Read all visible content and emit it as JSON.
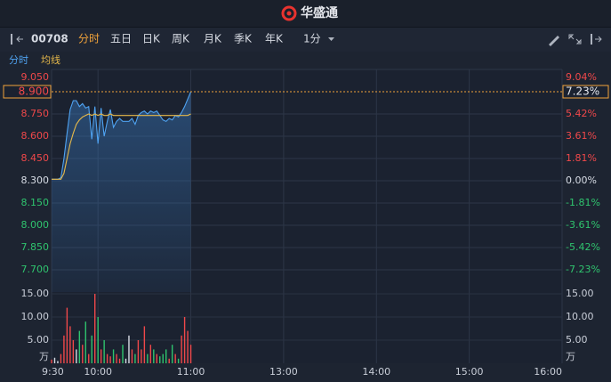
{
  "header": {
    "title": "华盛通"
  },
  "toolbar": {
    "code": "00708",
    "tabs": [
      "分时",
      "五日",
      "日K",
      "周K",
      "月K",
      "季K",
      "年K"
    ],
    "active_tab": 0,
    "period": "1分"
  },
  "chart_data": {
    "type": "line",
    "x": [
      0,
      2,
      4,
      6,
      8,
      10,
      12,
      14,
      16,
      18,
      20,
      22,
      24,
      26,
      28,
      30,
      32,
      34,
      36,
      38,
      40,
      42,
      44,
      46,
      48,
      50,
      52,
      54,
      56,
      58,
      60,
      62,
      64,
      66,
      68,
      70,
      72,
      74,
      76,
      78,
      80,
      82,
      84,
      86,
      88,
      90
    ],
    "xlim": [
      0,
      330
    ],
    "xticks": [
      {
        "value": 0,
        "label": "9:30"
      },
      {
        "value": 30,
        "label": "10:00"
      },
      {
        "value": 90,
        "label": "11:00"
      },
      {
        "value": 150,
        "label": "13:00"
      },
      {
        "value": 210,
        "label": "14:00"
      },
      {
        "value": 270,
        "label": "15:00"
      },
      {
        "value": 330,
        "label": "16:00"
      }
    ],
    "series": [
      {
        "name": "分时",
        "color": "#4fa3f2",
        "values": [
          8.31,
          8.31,
          8.31,
          8.32,
          8.45,
          8.62,
          8.78,
          8.84,
          8.84,
          8.8,
          8.82,
          8.79,
          8.8,
          8.58,
          8.8,
          8.55,
          8.79,
          8.6,
          8.7,
          8.78,
          8.66,
          8.7,
          8.72,
          8.7,
          8.7,
          8.7,
          8.72,
          8.68,
          8.74,
          8.76,
          8.77,
          8.75,
          8.77,
          8.76,
          8.77,
          8.74,
          8.71,
          8.7,
          8.72,
          8.71,
          8.74,
          8.73,
          8.76,
          8.8,
          8.85,
          8.9
        ]
      },
      {
        "name": "均线",
        "color": "#e5b84a",
        "values": [
          8.31,
          8.31,
          8.31,
          8.31,
          8.35,
          8.45,
          8.55,
          8.62,
          8.68,
          8.71,
          8.73,
          8.74,
          8.75,
          8.74,
          8.75,
          8.74,
          8.75,
          8.74,
          8.74,
          8.75,
          8.74,
          8.74,
          8.74,
          8.74,
          8.74,
          8.74,
          8.74,
          8.74,
          8.74,
          8.74,
          8.74,
          8.74,
          8.74,
          8.74,
          8.74,
          8.74,
          8.74,
          8.74,
          8.74,
          8.74,
          8.74,
          8.74,
          8.74,
          8.74,
          8.74,
          8.75
        ]
      }
    ],
    "ylim": [
      7.55,
      9.05
    ],
    "yticks": [
      {
        "value": 9.05,
        "label": "9.050"
      },
      {
        "value": 8.75,
        "label": "8.750"
      },
      {
        "value": 8.6,
        "label": "8.600"
      },
      {
        "value": 8.45,
        "label": "8.450"
      },
      {
        "value": 8.3,
        "label": "8.300"
      },
      {
        "value": 8.15,
        "label": "8.150"
      },
      {
        "value": 8.0,
        "label": "8.000"
      },
      {
        "value": 7.85,
        "label": "7.850"
      },
      {
        "value": 7.7,
        "label": "7.700"
      }
    ],
    "y2lim": [
      -9.036,
      9.036
    ],
    "y2ticks": [
      {
        "value": 9.04,
        "label": "9.04%"
      },
      {
        "value": 5.42,
        "label": "5.42%"
      },
      {
        "value": 3.61,
        "label": "3.61%"
      },
      {
        "value": 1.81,
        "label": "1.81%"
      },
      {
        "value": 0,
        "label": "0.00%"
      },
      {
        "value": -1.81,
        "label": "-1.81%"
      },
      {
        "value": -3.61,
        "label": "-3.61%"
      },
      {
        "value": -5.42,
        "label": "-5.42%"
      },
      {
        "value": -7.23,
        "label": "-7.23%"
      }
    ],
    "last_price": {
      "value": 8.9,
      "label": "8.900"
    },
    "last_change": {
      "value": 7.23,
      "label": "7.23%"
    },
    "up_color": "#f0484a",
    "down_color": "#2fc46e",
    "flat_color": "#d8dde6",
    "grid": true,
    "volume": {
      "values": [
        0.8,
        1.2,
        0.5,
        2,
        6,
        12,
        8,
        5,
        3,
        7,
        4,
        9,
        2,
        6,
        15,
        10,
        3,
        5,
        2,
        1.5,
        3,
        2,
        1,
        4,
        1,
        6,
        3,
        2,
        5,
        3,
        8,
        2,
        4,
        3,
        2,
        1.5,
        2,
        3,
        1,
        4,
        2,
        1,
        6,
        10,
        7,
        4
      ],
      "ylim": [
        0,
        15
      ],
      "yticks": [
        {
          "value": 15,
          "label": "15.00"
        },
        {
          "value": 10,
          "label": "10.00"
        },
        {
          "value": 5,
          "label": "5.00"
        }
      ],
      "unit": "万"
    }
  }
}
